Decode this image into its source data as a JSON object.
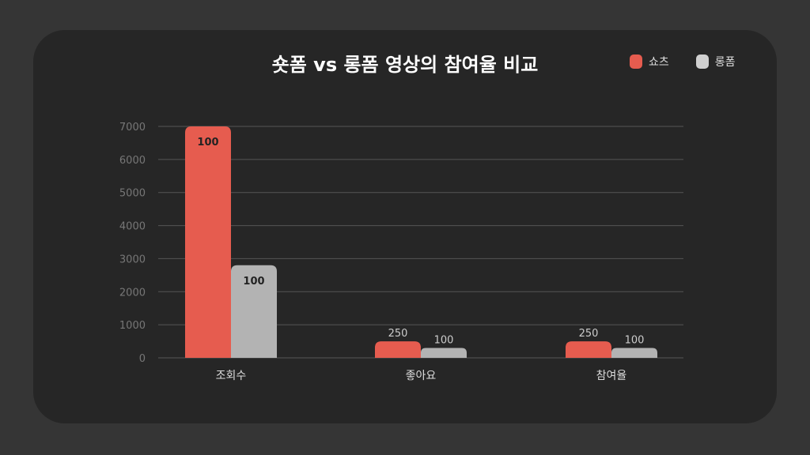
{
  "chart_data": {
    "type": "bar",
    "title": "숏폼 vs 롱폼 영상의 참여율 비교",
    "categories": [
      "조회수",
      "좋아요",
      "참여율"
    ],
    "series": [
      {
        "name": "쇼츠",
        "color": "#E65C4F",
        "values": [
          7000,
          500,
          500
        ],
        "labels": [
          "100",
          "250",
          "250"
        ]
      },
      {
        "name": "롱폼",
        "color": "#B3B3B3",
        "values": [
          2800,
          300,
          300
        ],
        "labels": [
          "100",
          "100",
          "100"
        ]
      }
    ],
    "ylim": [
      0,
      7000
    ],
    "yticks": [
      "0",
      "1000",
      "2000",
      "3000",
      "4000",
      "5000",
      "6000",
      "7000"
    ],
    "grid": true,
    "legend": "top-right",
    "xlabel": "",
    "ylabel": ""
  }
}
